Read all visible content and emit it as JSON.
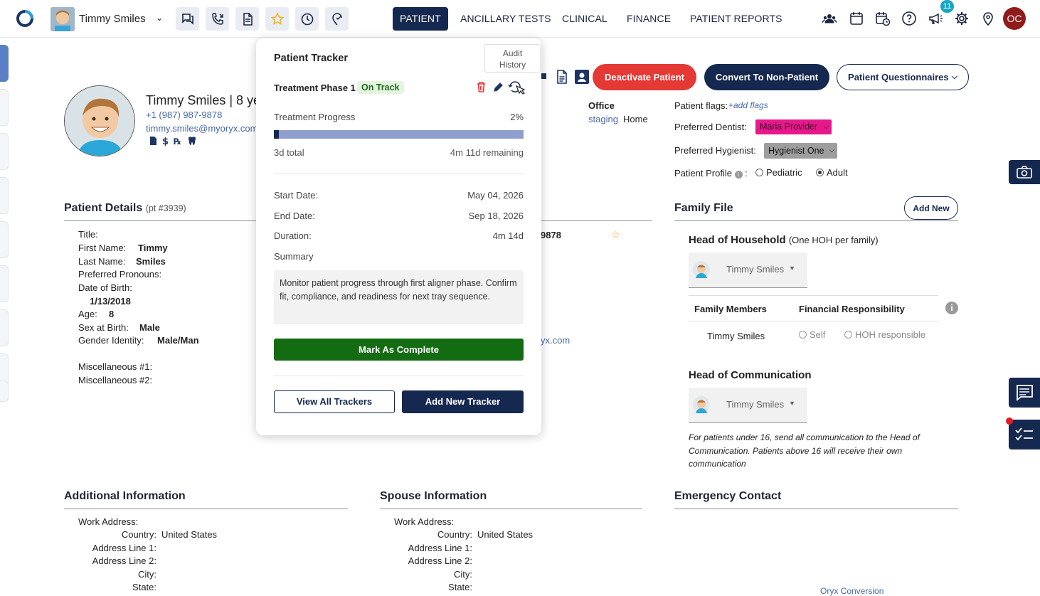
{
  "topbar": {
    "user_name": "Timmy Smiles",
    "tabs": [
      "PATIENT",
      "ANCILLARY TESTS",
      "CLINICAL",
      "FINANCE",
      "PATIENT REPORTS"
    ],
    "notification_count": "11",
    "avatar_initials": "OC"
  },
  "patient": {
    "header_name": "Timmy Smiles | 8 yea",
    "phone": "+1 (987) 987-9878",
    "email": "timmy.smiles@myoryx.com",
    "office_label": "Office",
    "office_value": "staging",
    "office_home": "Home"
  },
  "actions": {
    "deactivate": "Deactivate Patient",
    "convert": "Convert To Non-Patient",
    "questionnaires": "Patient Questionnaires"
  },
  "flags": {
    "flags_label": "Patient flags:",
    "add_flags": "+add flags",
    "dentist_label": "Preferred Dentist:",
    "dentist_value": "Maria Provider",
    "hygienist_label": "Preferred Hygienist:",
    "hygienist_value": "Hygienist One",
    "profile_label": "Patient Profile",
    "profile_options": [
      "Pediatric",
      "Adult"
    ],
    "profile_selected": "Adult"
  },
  "details": {
    "title": "Patient Details",
    "pt_number": "(pt #3939)",
    "fields": {
      "title_label": "Title:",
      "first_label": "First Name:",
      "first_value": "Timmy",
      "last_label": "Last Name:",
      "last_value": "Smiles",
      "pronouns_label": "Preferred Pronouns:",
      "dob_label": "Date of Birth:",
      "dob_value": "1/13/2018",
      "age_label": "Age:",
      "age_value": "8",
      "sex_label": "Sex at Birth:",
      "sex_value": "Male",
      "gender_label": "Gender Identity:",
      "gender_value": "Male/Man",
      "misc1_label": "Miscellaneous #1:",
      "misc2_label": "Miscellaneous #2:"
    },
    "phone_partial": "9878",
    "email_partial": "yx.com"
  },
  "family": {
    "title": "Family File",
    "add_new": "Add New",
    "hoh_title": "Head of Household",
    "hoh_note": "(One HOH per family)",
    "hoh_value": "Timmy Smiles",
    "members_header": "Family Members",
    "fin_header": "Financial Responsibility",
    "member_name": "Timmy Smiles",
    "fin_options": [
      "Self",
      "HOH responsible"
    ],
    "hoc_title": "Head of Communication",
    "hoc_value": "Timmy Smiles",
    "hoc_note": "For patients under 16, send all communication to the Head of Communication. Patients above 16 will receive their own communication"
  },
  "additional": {
    "title": "Additional Information",
    "labels": [
      "Work Address:",
      "Country:",
      "Address Line 1:",
      "Address Line 2:",
      "City:",
      "State:"
    ],
    "country_value": "United States"
  },
  "spouse": {
    "title": "Spouse Information",
    "labels": [
      "Work Address:",
      "Country:",
      "Address Line 1:",
      "Address Line 2:",
      "City:",
      "State:"
    ],
    "country_value": "United States"
  },
  "emergency": {
    "title": "Emergency Contact",
    "footer_partial": "Oryx Conversion"
  },
  "tracker": {
    "title": "Patient Tracker",
    "tooltip": "Audit History",
    "phase": "Treatment Phase 1",
    "status": "On Track",
    "progress_label": "Treatment Progress",
    "progress_pct": "2%",
    "progress_value": 0.02,
    "total": "3d total",
    "remaining": "4m 11d remaining",
    "start_label": "Start Date:",
    "start_value": "May 04, 2026",
    "end_label": "End Date:",
    "end_value": "Sep 18, 2026",
    "duration_label": "Duration:",
    "duration_value": "4m 14d",
    "summary_label": "Summary",
    "summary_text": "Monitor patient progress through first aligner phase. Confirm fit, compliance, and readiness for next tray sequence.",
    "complete_btn": "Mark As Complete",
    "view_all_btn": "View All Trackers",
    "add_new_btn": "Add New Tracker"
  },
  "colors": {
    "navy": "#15284f",
    "red": "#e53935",
    "green": "#146c12",
    "pink": "#e6198c",
    "progress_bg": "#8e9fcd"
  }
}
